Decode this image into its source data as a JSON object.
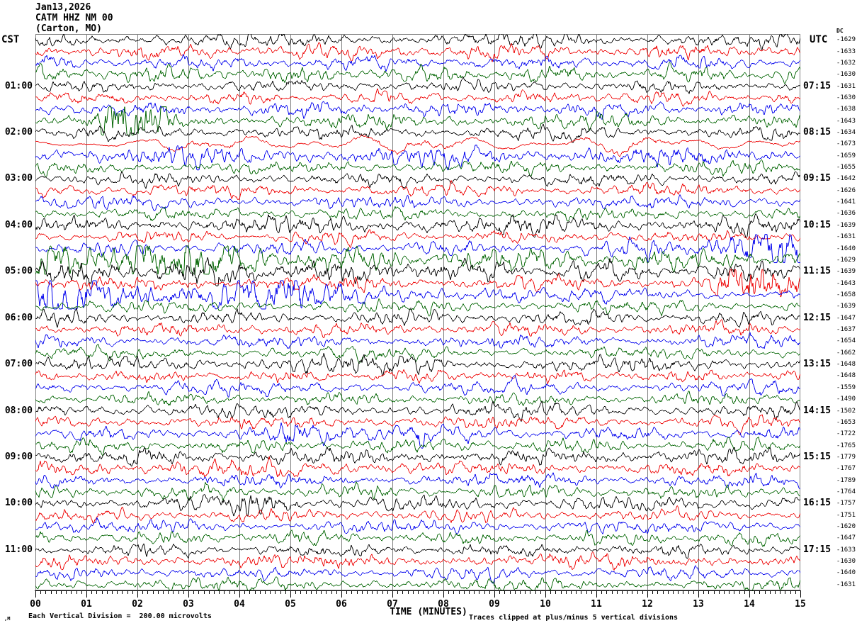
{
  "header": {
    "date": "Jan13,2026",
    "station": "CATM HHZ NM 00",
    "location": "(Carton, MO)"
  },
  "axis": {
    "left_tz": "CST",
    "right_tz": "UTC",
    "dc_label": "DC",
    "x_title": "TIME (MINUTES)",
    "x_ticks": [
      "00",
      "01",
      "02",
      "03",
      "04",
      "05",
      "06",
      "07",
      "08",
      "09",
      "10",
      "11",
      "12",
      "13",
      "14",
      "15"
    ],
    "footer_left": "Each Vertical Division =  200.00 microvolts",
    "footer_right": "Traces clipped at plus/minus 5 vertical divisions",
    "watermark": ",M"
  },
  "chart_data": {
    "type": "line",
    "variant": "helicorder-seismogram",
    "title": "CATM HHZ NM 00 (Carton, MO) Jan13,2026",
    "x_title": "TIME (MINUTES)",
    "x_range_minutes": [
      0,
      15
    ],
    "minutes_per_row": 15,
    "rows_count": 48,
    "vertical_division_microvolts": 200.0,
    "clip_divisions": 5,
    "left_timezone": "CST",
    "right_timezone": "UTC",
    "grid": true,
    "colors": {
      "black": "#000000",
      "red": "#ee0000",
      "blue": "#0000ee",
      "green": "#006400",
      "grid": "#808080",
      "axis": "#000000"
    },
    "color_cycle": [
      "black",
      "red",
      "blue",
      "green"
    ],
    "rows": [
      {
        "cst": "00:00",
        "color": "black",
        "dc": -1629,
        "amp": 3.5,
        "lcst": "",
        "lutc": "",
        "events": []
      },
      {
        "cst": "00:15",
        "color": "red",
        "dc": -1633,
        "amp": 3.4,
        "lcst": "",
        "lutc": "",
        "events": []
      },
      {
        "cst": "00:30",
        "color": "blue",
        "dc": -1632,
        "amp": 3.4,
        "lcst": "",
        "lutc": "",
        "events": []
      },
      {
        "cst": "00:45",
        "color": "green",
        "dc": -1630,
        "amp": 3.8,
        "lcst": "",
        "lutc": "",
        "events": []
      },
      {
        "cst": "01:00",
        "color": "black",
        "dc": -1631,
        "amp": 2.9,
        "lcst": "01:00",
        "lutc": "07:15",
        "events": []
      },
      {
        "cst": "01:15",
        "color": "red",
        "dc": -1630,
        "amp": 3.1,
        "lcst": "",
        "lutc": "",
        "events": []
      },
      {
        "cst": "01:30",
        "color": "blue",
        "dc": -1638,
        "amp": 3.3,
        "lcst": "",
        "lutc": "",
        "events": []
      },
      {
        "cst": "01:45",
        "color": "green",
        "dc": -1643,
        "amp": 3.3,
        "lcst": "",
        "lutc": "",
        "events": [
          [
            1.35,
            2.5,
            3.4
          ]
        ]
      },
      {
        "cst": "02:00",
        "color": "black",
        "dc": -1634,
        "amp": 3.1,
        "lcst": "02:00",
        "lutc": "08:15",
        "events": []
      },
      {
        "cst": "02:15",
        "color": "red",
        "dc": -1673,
        "amp": 3.4,
        "lcst": "",
        "lutc": "",
        "lf": true,
        "events": [
          [
            2.5,
            15,
            2.0
          ]
        ]
      },
      {
        "cst": "02:30",
        "color": "blue",
        "dc": -1659,
        "amp": 3.4,
        "lcst": "",
        "lutc": "",
        "events": [
          [
            0,
            15,
            1.35
          ]
        ]
      },
      {
        "cst": "02:45",
        "color": "green",
        "dc": -1655,
        "amp": 3.0,
        "lcst": "",
        "lutc": "",
        "events": []
      },
      {
        "cst": "03:00",
        "color": "black",
        "dc": -1642,
        "amp": 3.0,
        "lcst": "03:00",
        "lutc": "09:15",
        "events": []
      },
      {
        "cst": "03:15",
        "color": "red",
        "dc": -1626,
        "amp": 3.2,
        "lcst": "",
        "lutc": "",
        "events": []
      },
      {
        "cst": "03:30",
        "color": "blue",
        "dc": -1641,
        "amp": 3.0,
        "lcst": "",
        "lutc": "",
        "events": []
      },
      {
        "cst": "03:45",
        "color": "green",
        "dc": -1636,
        "amp": 2.9,
        "lcst": "",
        "lutc": "",
        "events": []
      },
      {
        "cst": "04:00",
        "color": "black",
        "dc": -1639,
        "amp": 3.4,
        "lcst": "04:00",
        "lutc": "10:15",
        "events": [
          [
            0,
            15,
            1.2
          ]
        ]
      },
      {
        "cst": "04:15",
        "color": "red",
        "dc": -1631,
        "amp": 3.0,
        "lcst": "",
        "lutc": "",
        "events": []
      },
      {
        "cst": "04:30",
        "color": "blue",
        "dc": -1640,
        "amp": 3.2,
        "lcst": "",
        "lutc": "",
        "events": [
          [
            11.8,
            13.2,
            1.6
          ],
          [
            13.2,
            15,
            3.2
          ]
        ]
      },
      {
        "cst": "04:45",
        "color": "green",
        "dc": -1629,
        "amp": 3.4,
        "lcst": "",
        "lutc": "",
        "events": [
          [
            0,
            4.5,
            3.2
          ],
          [
            4.5,
            15,
            1.6
          ]
        ]
      },
      {
        "cst": "05:00",
        "color": "black",
        "dc": -1639,
        "amp": 3.3,
        "lcst": "05:00",
        "lutc": "11:15",
        "events": [
          [
            0,
            8,
            1.8
          ],
          [
            8,
            15,
            1.35
          ]
        ]
      },
      {
        "cst": "05:15",
        "color": "red",
        "dc": -1643,
        "amp": 3.3,
        "lcst": "",
        "lutc": "",
        "events": [
          [
            13.5,
            15,
            2.8
          ]
        ]
      },
      {
        "cst": "05:30",
        "color": "blue",
        "dc": -1658,
        "amp": 3.2,
        "lcst": "",
        "lutc": "",
        "events": [
          [
            0,
            5.3,
            3.0
          ],
          [
            5.3,
            9.5,
            1.5
          ]
        ]
      },
      {
        "cst": "05:45",
        "color": "green",
        "dc": -1639,
        "amp": 3.0,
        "lcst": "",
        "lutc": "",
        "events": []
      },
      {
        "cst": "06:00",
        "color": "black",
        "dc": -1647,
        "amp": 3.4,
        "lcst": "06:00",
        "lutc": "12:15",
        "events": []
      },
      {
        "cst": "06:15",
        "color": "red",
        "dc": -1637,
        "amp": 3.0,
        "lcst": "",
        "lutc": "",
        "events": []
      },
      {
        "cst": "06:30",
        "color": "blue",
        "dc": -1654,
        "amp": 3.0,
        "lcst": "",
        "lutc": "",
        "events": []
      },
      {
        "cst": "06:45",
        "color": "green",
        "dc": -1662,
        "amp": 3.0,
        "lcst": "",
        "lutc": "",
        "events": []
      },
      {
        "cst": "07:00",
        "color": "black",
        "dc": -1648,
        "amp": 3.5,
        "lcst": "07:00",
        "lutc": "13:15",
        "events": [
          [
            4,
            8,
            1.3
          ]
        ]
      },
      {
        "cst": "07:15",
        "color": "red",
        "dc": -1648,
        "amp": 3.0,
        "lcst": "",
        "lutc": "",
        "events": []
      },
      {
        "cst": "07:30",
        "color": "blue",
        "dc": -1559,
        "amp": 3.2,
        "lcst": "",
        "lutc": "",
        "events": []
      },
      {
        "cst": "07:45",
        "color": "green",
        "dc": -1490,
        "amp": 3.0,
        "lcst": "",
        "lutc": "",
        "events": []
      },
      {
        "cst": "08:00",
        "color": "black",
        "dc": -1502,
        "amp": 3.4,
        "lcst": "08:00",
        "lutc": "14:15",
        "events": []
      },
      {
        "cst": "08:15",
        "color": "red",
        "dc": -1653,
        "amp": 3.0,
        "lcst": "",
        "lutc": "",
        "events": []
      },
      {
        "cst": "08:30",
        "color": "blue",
        "dc": -1722,
        "amp": 3.1,
        "lcst": "",
        "lutc": "",
        "events": [
          [
            4.8,
            7.6,
            2.0
          ]
        ]
      },
      {
        "cst": "08:45",
        "color": "green",
        "dc": -1765,
        "amp": 3.2,
        "lcst": "",
        "lutc": "",
        "events": []
      },
      {
        "cst": "09:00",
        "color": "black",
        "dc": -1779,
        "amp": 3.5,
        "lcst": "09:00",
        "lutc": "15:15",
        "events": []
      },
      {
        "cst": "09:15",
        "color": "red",
        "dc": -1767,
        "amp": 3.1,
        "lcst": "",
        "lutc": "",
        "events": [
          [
            0,
            7,
            1.35
          ]
        ]
      },
      {
        "cst": "09:30",
        "color": "blue",
        "dc": -1789,
        "amp": 3.1,
        "lcst": "",
        "lutc": "",
        "events": []
      },
      {
        "cst": "09:45",
        "color": "green",
        "dc": -1764,
        "amp": 3.2,
        "lcst": "",
        "lutc": "",
        "events": []
      },
      {
        "cst": "10:00",
        "color": "black",
        "dc": -1757,
        "amp": 3.4,
        "lcst": "10:00",
        "lutc": "16:15",
        "events": [
          [
            4.1,
            5.0,
            1.9
          ]
        ]
      },
      {
        "cst": "10:15",
        "color": "red",
        "dc": -1751,
        "amp": 3.0,
        "lcst": "",
        "lutc": "",
        "events": []
      },
      {
        "cst": "10:30",
        "color": "blue",
        "dc": -1620,
        "amp": 3.0,
        "lcst": "",
        "lutc": "",
        "events": []
      },
      {
        "cst": "10:45",
        "color": "green",
        "dc": -1647,
        "amp": 3.1,
        "lcst": "",
        "lutc": "",
        "events": []
      },
      {
        "cst": "11:00",
        "color": "black",
        "dc": -1633,
        "amp": 3.2,
        "lcst": "11:00",
        "lutc": "17:15",
        "events": []
      },
      {
        "cst": "11:15",
        "color": "red",
        "dc": -1630,
        "amp": 3.2,
        "lcst": "",
        "lutc": "",
        "events": []
      },
      {
        "cst": "11:30",
        "color": "blue",
        "dc": -1640,
        "amp": 3.0,
        "lcst": "",
        "lutc": "",
        "events": []
      },
      {
        "cst": "11:45",
        "color": "green",
        "dc": -1631,
        "amp": 3.1,
        "lcst": "",
        "lutc": "",
        "events": []
      }
    ]
  }
}
